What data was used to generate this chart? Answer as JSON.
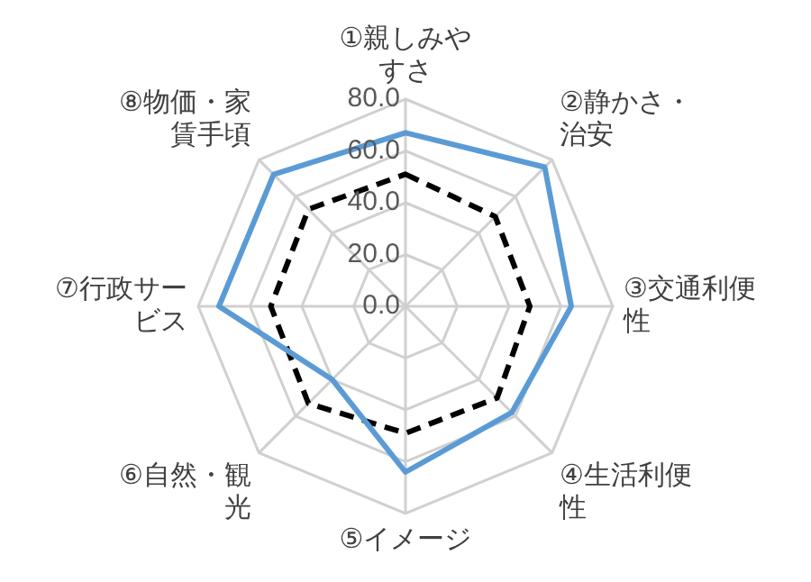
{
  "chart_data": {
    "type": "radar",
    "categories": [
      "①親しみやすさ",
      "②静かさ・治安",
      "③交通利便性",
      "④生活利便性",
      "⑤イメージ",
      "⑥自然・観光",
      "⑦行政サービス",
      "⑧物価・家賃手頃"
    ],
    "series": [
      {
        "color": "#5b9bd5",
        "line_style": "solid",
        "values": [
          67,
          76,
          64,
          58,
          64,
          40,
          72,
          72
        ]
      },
      {
        "color": "#000000",
        "line_style": "dashed",
        "values": [
          51,
          49,
          48,
          50,
          49,
          53,
          52,
          53
        ]
      }
    ],
    "ylim": [
      0,
      80
    ],
    "yticks": [
      {
        "value": 0,
        "label": "0.0"
      },
      {
        "value": 20,
        "label": "20.0"
      },
      {
        "value": 40,
        "label": "40.0"
      },
      {
        "value": 60,
        "label": "60.0"
      },
      {
        "value": 80,
        "label": "80.0"
      }
    ],
    "grid": true,
    "legend": false,
    "marker": "none"
  }
}
